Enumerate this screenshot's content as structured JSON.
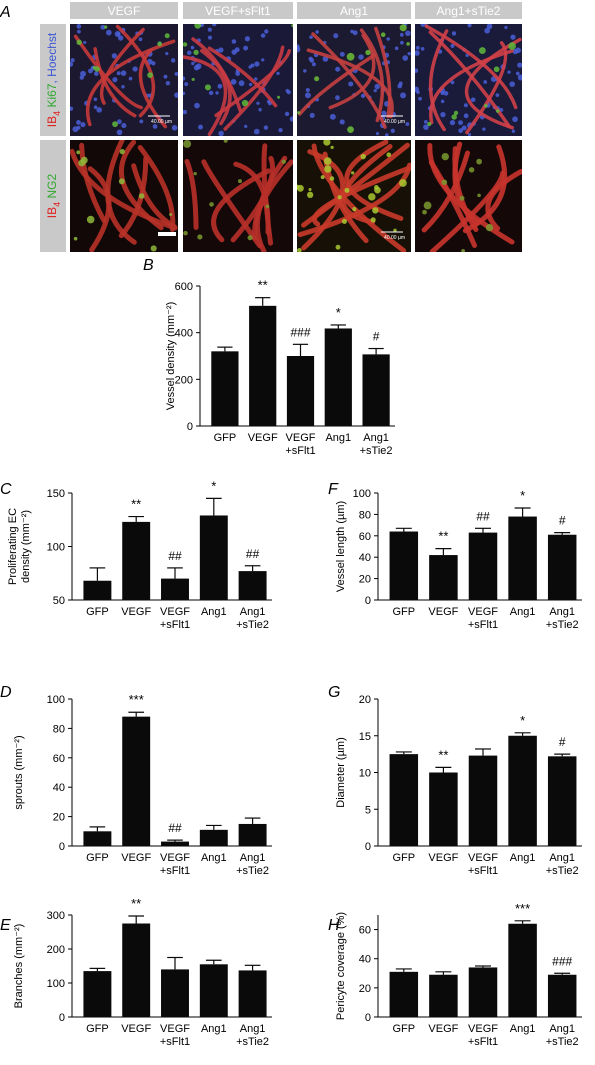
{
  "panel_a": {
    "letter": "A",
    "columns": [
      "VEGF",
      "VEGF+sFlt1",
      "Ang1",
      "Ang1+sTie2"
    ],
    "row1_label": {
      "parts": [
        {
          "text": "IB",
          "color": "#e02020"
        },
        {
          "text": "4",
          "color": "#e02020",
          "sub": true
        },
        {
          "text": " Ki67",
          "color": "#2ea82e"
        },
        {
          "text": ", Hoechst",
          "color": "#3a56d4"
        }
      ]
    },
    "row2_label": {
      "parts": [
        {
          "text": "IB",
          "color": "#e02020"
        },
        {
          "text": "4",
          "color": "#e02020",
          "sub": true
        },
        {
          "text": " NG2",
          "color": "#2ea82e"
        }
      ]
    },
    "scale_text": "40.00 µm",
    "tiles": [
      {
        "row": 0,
        "col": 0,
        "bg": "#1b1830",
        "vessel": "#c83a3a",
        "green": "#5fb83a",
        "dots": "#4a5fd8",
        "scale_label": true
      },
      {
        "row": 0,
        "col": 1,
        "bg": "#1a1a38",
        "vessel": "#c93b42",
        "green": "#5fb83a",
        "dots": "#4a5fd8",
        "scale_label": false
      },
      {
        "row": 0,
        "col": 2,
        "bg": "#1c1a30",
        "vessel": "#c44040",
        "green": "#6cc038",
        "dots": "#4a5fd8",
        "scale_label": true
      },
      {
        "row": 0,
        "col": 3,
        "bg": "#1a1a3a",
        "vessel": "#d04048",
        "green": "#5fb83a",
        "dots": "#4a5fd8",
        "scale_label": false
      },
      {
        "row": 1,
        "col": 0,
        "bg": "#120808",
        "vessel": "#b83228",
        "green": "#8fb83a",
        "dots": "",
        "scale_label": false
      },
      {
        "row": 1,
        "col": 1,
        "bg": "#140808",
        "vessel": "#b8302a",
        "green": "#7a9a30",
        "dots": "",
        "scale_label": false
      },
      {
        "row": 1,
        "col": 2,
        "bg": "#161006",
        "vessel": "#c83a2a",
        "green": "#a8c830",
        "dots": "",
        "scale_label": true
      },
      {
        "row": 1,
        "col": 3,
        "bg": "#140808",
        "vessel": "#c8342c",
        "green": "#7a9a30",
        "dots": "",
        "scale_label": false
      }
    ],
    "colors": {
      "header_bg": "#c9c9c9",
      "header_text": "#ffffff",
      "rowlabel_bg": "#c9c9c9"
    }
  },
  "chart_data": [
    {
      "panel": "B",
      "type": "bar",
      "categories": [
        "GFP",
        "VEGF",
        "VEGF\n+sFlt1",
        "Ang1",
        "Ang1\n+sTie2"
      ],
      "values": [
        320,
        515,
        300,
        418,
        307
      ],
      "errors": [
        18,
        35,
        50,
        15,
        25
      ],
      "annotations": [
        "",
        "**",
        "###",
        "*",
        "#"
      ],
      "ylabel": "Vessel density (mm⁻²)",
      "ylim": [
        0,
        600
      ],
      "yticks": [
        0,
        200,
        400,
        600
      ]
    },
    {
      "panel": "C",
      "type": "bar",
      "categories": [
        "GFP",
        "VEGF",
        "VEGF\n+sFlt1",
        "Ang1",
        "Ang1\n+sTie2"
      ],
      "values": [
        68,
        123,
        70,
        129,
        77
      ],
      "errors": [
        12,
        5,
        10,
        16,
        5
      ],
      "annotations": [
        "",
        "**",
        "##",
        "*",
        "##"
      ],
      "ylabel": "Proliferating EC\ndensity (mm⁻²)",
      "ylim": [
        50,
        150
      ],
      "yticks": [
        50,
        100,
        150
      ]
    },
    {
      "panel": "F",
      "type": "bar",
      "categories": [
        "GFP",
        "VEGF",
        "VEGF\n+sFlt1",
        "Ang1",
        "Ang1\n+sTie2"
      ],
      "values": [
        64,
        42,
        63,
        78,
        61
      ],
      "errors": [
        3,
        6,
        4,
        8,
        2
      ],
      "annotations": [
        "",
        "**",
        "##",
        "*",
        "#"
      ],
      "ylabel": "Vessel length (µm)",
      "ylim": [
        0,
        100
      ],
      "yticks": [
        0,
        20,
        40,
        60,
        80,
        100
      ]
    },
    {
      "panel": "D",
      "type": "bar",
      "categories": [
        "GFP",
        "VEGF",
        "VEGF\n+sFlt1",
        "Ang1",
        "Ang1\n+sTie2"
      ],
      "values": [
        10,
        88,
        3,
        11,
        15
      ],
      "errors": [
        3,
        3,
        1,
        3,
        4
      ],
      "annotations": [
        "",
        "***",
        "##",
        "",
        ""
      ],
      "ylabel": "sprouts (mm⁻²)",
      "ylim": [
        0,
        100
      ],
      "yticks": [
        0,
        20,
        40,
        60,
        80,
        100
      ]
    },
    {
      "panel": "G",
      "type": "bar",
      "categories": [
        "GFP",
        "VEGF",
        "VEGF\n+sFlt1",
        "Ang1",
        "Ang1\n+sTie2"
      ],
      "values": [
        12.5,
        10,
        12.3,
        15,
        12.2
      ],
      "errors": [
        0.3,
        0.7,
        0.9,
        0.4,
        0.3
      ],
      "annotations": [
        "",
        "**",
        "",
        "*",
        "#"
      ],
      "ylabel": "Diameter (µm)",
      "ylim": [
        0,
        20
      ],
      "yticks": [
        0,
        5,
        10,
        15,
        20
      ]
    },
    {
      "panel": "E",
      "type": "bar",
      "categories": [
        "GFP",
        "VEGF",
        "VEGF\n+sFlt1",
        "Ang1",
        "Ang1\n+sTie2"
      ],
      "values": [
        135,
        275,
        140,
        155,
        137
      ],
      "errors": [
        8,
        22,
        35,
        12,
        15
      ],
      "annotations": [
        "",
        "**",
        "",
        "",
        ""
      ],
      "ylabel": "Branches (mm⁻²)",
      "ylim": [
        0,
        300
      ],
      "yticks": [
        0,
        100,
        200,
        300
      ]
    },
    {
      "panel": "H",
      "type": "bar",
      "categories": [
        "GFP",
        "VEGF",
        "VEGF\n+sFlt1",
        "Ang1",
        "Ang1\n+sTie2"
      ],
      "values": [
        31,
        29,
        34,
        64,
        29
      ],
      "errors": [
        2,
        2,
        1,
        2,
        1
      ],
      "annotations": [
        "",
        "",
        "",
        "***",
        "###"
      ],
      "ylabel": "Pericyte coverage (%)",
      "ylim": [
        0,
        70
      ],
      "yticks": [
        0,
        20,
        40,
        60
      ]
    }
  ],
  "colors": {
    "bar": "#0a0a0a",
    "axis": "#000000",
    "text": "#111111"
  }
}
